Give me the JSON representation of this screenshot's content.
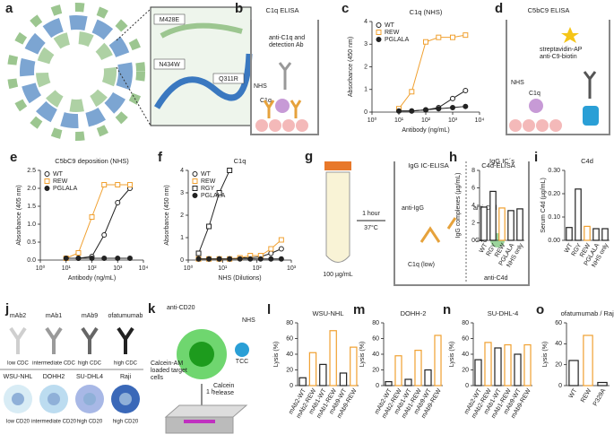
{
  "diagrams": {
    "a": {
      "panel": "a",
      "mutations": [
        "M428E",
        "N434W",
        "Q311R"
      ]
    },
    "b": {
      "panel": "b",
      "title": "C1q ELISA",
      "detection": [
        "anti-C1q and",
        "detection Ab"
      ],
      "serum": "NHS",
      "c1q": "C1q"
    },
    "d": {
      "panel": "d",
      "title": "C5bC9 ELISA",
      "streptavidin": "streptavidin-AP",
      "anti_c9": "anti-C9-biotin",
      "serum": "NHS",
      "c1q": "C1q"
    },
    "g": {
      "panel": "g",
      "time": "1 hour",
      "temperature": "37°C",
      "concentration": "100 µg/mL",
      "left_title": "IgG IC-ELISA",
      "right_title": "C4d-ELISA",
      "anti_igg": "anti-IgG",
      "c1q": "C1q (low)",
      "anti_c4d_top": "anti-C4d",
      "c4d": "C4d",
      "anti_c4d_bottom": "anti-C4d"
    },
    "j": {
      "panel": "j",
      "antibodies": [
        {
          "name": "mAb2",
          "cdc": "low CDC"
        },
        {
          "name": "mAb1",
          "cdc": "intermediate CDC"
        },
        {
          "name": "mAb9",
          "cdc": "high CDC"
        },
        {
          "name": "ofatumumab",
          "cdc": "high CDC"
        }
      ],
      "cells": [
        {
          "name": "WSU-NHL",
          "cd20": "low CD20"
        },
        {
          "name": "DOHH2",
          "cd20": "intermediate CD20"
        },
        {
          "name": "SU-DHL4",
          "cd20": "high CD20"
        },
        {
          "name": "Raji",
          "cd20": "high CD20"
        }
      ]
    },
    "k": {
      "panel": "k",
      "antibody": "anti-CD20",
      "serum": "NHS",
      "cells": [
        "Calcein-AM",
        "loaded target",
        "cells"
      ],
      "tcc": "TCC",
      "time": "1 h",
      "readout": [
        "Calcein",
        "release"
      ]
    }
  },
  "chart_data": [
    {
      "type": "line",
      "panel": "c",
      "title": "C1q (NHS)",
      "xlabel": "Antibody (ng/mL)",
      "ylabel": "Absorbance (450 nm)",
      "xscale": "log",
      "legend": "upper left",
      "x": [
        10,
        30,
        100,
        300,
        1000,
        3000
      ],
      "series": [
        {
          "name": "WT",
          "color": "#222222",
          "marker": "circle",
          "filled": false,
          "values": [
            0.05,
            0.05,
            0.1,
            0.2,
            0.6,
            0.95
          ]
        },
        {
          "name": "REW",
          "color": "#f0a030",
          "marker": "square",
          "filled": false,
          "values": [
            0.15,
            0.9,
            3.1,
            3.3,
            3.3,
            3.4
          ]
        },
        {
          "name": "PGLALA",
          "color": "#222222",
          "marker": "circle",
          "filled": true,
          "values": [
            0.05,
            0.05,
            0.1,
            0.15,
            0.2,
            0.25
          ]
        }
      ],
      "xlim": [
        1,
        10000
      ],
      "xticks": [
        {
          "value": 1,
          "label": "10⁰"
        },
        {
          "value": 10,
          "label": "10¹"
        },
        {
          "value": 100,
          "label": "10²"
        },
        {
          "value": 1000,
          "label": "10³"
        },
        {
          "value": 10000,
          "label": "10⁴"
        }
      ],
      "ylim": [
        0,
        4
      ],
      "yticks": [
        0,
        1,
        2,
        3,
        4
      ]
    },
    {
      "type": "line",
      "panel": "e",
      "title": "C5bC9 deposition (NHS)",
      "xlabel": "Antibody (ng/mL)",
      "ylabel": "Absorbance (405 nm)",
      "xscale": "log",
      "legend": "upper left",
      "x": [
        10,
        30,
        100,
        300,
        1000,
        3000
      ],
      "series": [
        {
          "name": "WT",
          "color": "#222222",
          "marker": "circle",
          "filled": false,
          "values": [
            0.05,
            0.05,
            0.1,
            0.7,
            1.6,
            2.0
          ]
        },
        {
          "name": "REW",
          "color": "#f0a030",
          "marker": "square",
          "filled": false,
          "values": [
            0.05,
            0.2,
            1.2,
            2.1,
            2.1,
            2.1
          ]
        },
        {
          "name": "PGLALA",
          "color": "#222222",
          "marker": "circle",
          "filled": true,
          "values": [
            0.05,
            0.05,
            0.05,
            0.05,
            0.05,
            0.05
          ]
        }
      ],
      "xlim": [
        1,
        10000
      ],
      "xticks": [
        {
          "value": 1,
          "label": "10⁰"
        },
        {
          "value": 10,
          "label": "10¹"
        },
        {
          "value": 100,
          "label": "10²"
        },
        {
          "value": 1000,
          "label": "10³"
        },
        {
          "value": 10000,
          "label": "10⁴"
        }
      ],
      "ylim": [
        0,
        2.5
      ],
      "yticks": [
        {
          "value": 0,
          "label": "0.0"
        },
        0.5,
        {
          "value": 1,
          "label": "1.0"
        },
        1.5,
        {
          "value": 2,
          "label": "2.0"
        },
        2.5
      ]
    },
    {
      "type": "line",
      "panel": "f",
      "title": "C1q",
      "xlabel": "NHS (Dilutions)",
      "ylabel": "Absorbance (450 nm)",
      "xscale": "log",
      "legend": "upper left",
      "x": [
        2,
        4,
        8,
        16,
        32,
        64,
        128,
        256,
        512
      ],
      "series": [
        {
          "name": "WT",
          "color": "#222222",
          "marker": "circle",
          "filled": false,
          "values": [
            0.05,
            0.05,
            0.05,
            0.05,
            0.1,
            0.1,
            0.15,
            0.3,
            0.5
          ]
        },
        {
          "name": "REW",
          "color": "#f0a030",
          "marker": "square",
          "filled": false,
          "values": [
            0.05,
            0.05,
            0.05,
            0.05,
            0.1,
            0.2,
            0.2,
            0.5,
            0.9
          ]
        },
        {
          "name": "RGY",
          "color": "#222222",
          "marker": "square",
          "filled": false,
          "values": [
            0.3,
            1.5,
            3.0,
            4.0,
            null,
            null,
            null,
            null,
            null
          ]
        },
        {
          "name": "PGLALA",
          "color": "#222222",
          "marker": "circle",
          "filled": true,
          "values": [
            0.05,
            0.05,
            0.05,
            0.05,
            0.05,
            0.05,
            0.05,
            0.05,
            0.05
          ]
        }
      ],
      "xlim": [
        1,
        1000
      ],
      "xticks": [
        {
          "value": 1,
          "label": "10⁰"
        },
        {
          "value": 10,
          "label": "10¹"
        },
        {
          "value": 100,
          "label": "10²"
        },
        {
          "value": 1000,
          "label": "10³"
        }
      ],
      "ylim": [
        0,
        4
      ],
      "yticks": [
        0,
        1,
        2,
        3,
        4
      ]
    },
    {
      "type": "bar",
      "panel": "h",
      "title": "IgG IC´s",
      "ylabel": "IgG complexes (µg/mL)",
      "categories": [
        "WT",
        "RGY",
        "REW",
        "PGLALA",
        "NHS only"
      ],
      "values": [
        3.8,
        5.6,
        3.7,
        3.4,
        3.6
      ],
      "colors": [
        "#222222",
        "#222222",
        "#f0a030",
        "#222222",
        "#222222"
      ],
      "ylim": [
        0,
        8
      ],
      "yticks": [
        0,
        2,
        4,
        6,
        8
      ]
    },
    {
      "type": "bar",
      "panel": "i",
      "title": "C4d",
      "ylabel": "Serum C4d (µg/mL)",
      "categories": [
        "WT",
        "RGY",
        "REW",
        "PGLALA",
        "NHS only"
      ],
      "values": [
        0.055,
        0.22,
        0.06,
        0.05,
        0.05
      ],
      "colors": [
        "#222222",
        "#222222",
        "#f0a030",
        "#222222",
        "#222222"
      ],
      "ylim": [
        0,
        0.3
      ],
      "yticks": [
        {
          "value": 0,
          "label": "0.00"
        },
        {
          "value": 0.1,
          "label": "0.10"
        },
        {
          "value": 0.2,
          "label": "0.20"
        },
        {
          "value": 0.3,
          "label": "0.30"
        }
      ]
    },
    {
      "type": "bar",
      "panel": "l",
      "title": "WSU-NHL",
      "ylabel": "Lysis (%)",
      "categories": [
        "mAb2-WT",
        "mAb2-REW",
        "mAb1-WT",
        "mAb1-REW",
        "mAb9-WT",
        "mAb9-REW"
      ],
      "values": [
        10,
        42,
        27,
        70,
        16,
        49
      ],
      "colors": [
        "#222222",
        "#f0a030",
        "#222222",
        "#f0a030",
        "#222222",
        "#f0a030"
      ],
      "ylim": [
        0,
        80
      ],
      "yticks": [
        0,
        20,
        40,
        60,
        80
      ]
    },
    {
      "type": "bar",
      "panel": "m",
      "title": "DOHH-2",
      "ylabel": "Lysis (%)",
      "categories": [
        "mAb2-WT",
        "mAb2-REW",
        "mAb1-WT",
        "mAb1-REW",
        "mAb9-WT",
        "mAb9-REW"
      ],
      "values": [
        5,
        38,
        8,
        45,
        20,
        64
      ],
      "colors": [
        "#222222",
        "#f0a030",
        "#222222",
        "#f0a030",
        "#222222",
        "#f0a030"
      ],
      "ylim": [
        0,
        80
      ],
      "yticks": [
        0,
        20,
        40,
        60,
        80
      ]
    },
    {
      "type": "bar",
      "panel": "n",
      "title": "SU-DHL-4",
      "ylabel": "Lysis (%)",
      "categories": [
        "mAb2-WT",
        "mAb2-REW",
        "mAb1-WT",
        "mAb1-REW",
        "mAb9-WT",
        "mAb9-REW"
      ],
      "values": [
        33,
        55,
        48,
        52,
        40,
        52
      ],
      "colors": [
        "#222222",
        "#f0a030",
        "#222222",
        "#f0a030",
        "#222222",
        "#f0a030"
      ],
      "ylim": [
        0,
        80
      ],
      "yticks": [
        0,
        20,
        40,
        60,
        80
      ]
    },
    {
      "type": "bar",
      "panel": "o",
      "title": "ofatumumab / Raji",
      "ylabel": "Lysis (%)",
      "categories": [
        "WT",
        "REW",
        "P329A"
      ],
      "values": [
        24,
        48,
        3
      ],
      "colors": [
        "#222222",
        "#f0a030",
        "#222222"
      ],
      "ylim": [
        0,
        60
      ],
      "yticks": [
        0,
        20,
        40,
        60
      ]
    }
  ]
}
